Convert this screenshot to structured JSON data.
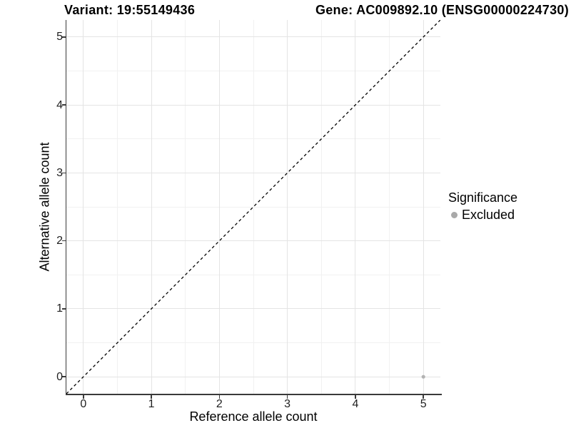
{
  "titles": {
    "variant": "Variant: 19:55149436",
    "gene": "Gene: AC009892.10 (ENSG00000224730)"
  },
  "chart_data": {
    "type": "scatter",
    "xlabel": "Reference allele count",
    "ylabel": "Alternative allele count",
    "xlim": [
      -0.25,
      5.25
    ],
    "ylim": [
      -0.25,
      5.25
    ],
    "x_ticks": [
      0,
      1,
      2,
      3,
      4,
      5
    ],
    "y_ticks": [
      0,
      1,
      2,
      3,
      4,
      5
    ],
    "grid": "major+minor",
    "series": [
      {
        "name": "Excluded",
        "color": "#b3b3b3",
        "points": [
          {
            "x": 5,
            "y": 0
          }
        ]
      }
    ],
    "reference_line": {
      "type": "identity",
      "style": "dashed",
      "color": "#000000"
    },
    "legend": {
      "position": "right",
      "title": "Significance",
      "items": [
        {
          "label": "Excluded",
          "color": "#a9a9a9"
        }
      ]
    }
  },
  "colors": {
    "background": "#ffffff",
    "axis_line": "#3a3a3a",
    "grid_major": "#e4e4e4",
    "grid_minor": "#f1f1f1",
    "tick_label": "#1f1f1f"
  }
}
